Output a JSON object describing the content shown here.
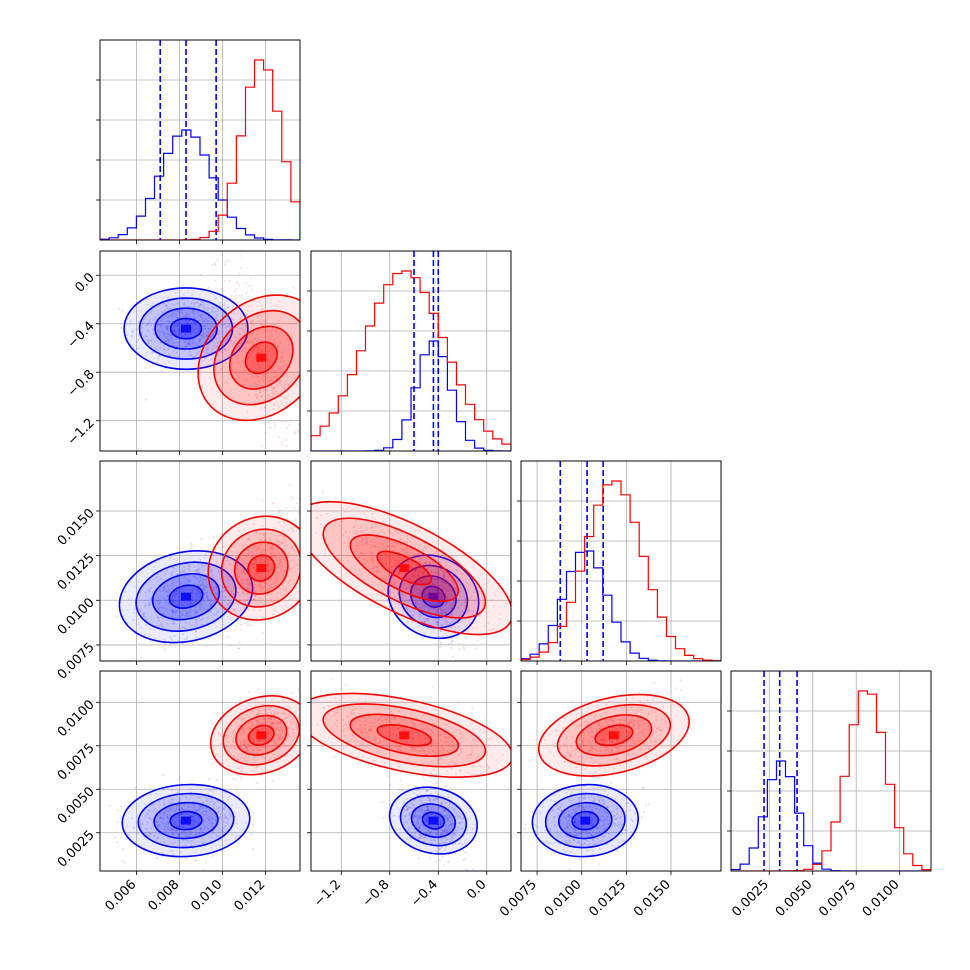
{
  "chart_data": {
    "type": "corner",
    "title": "",
    "parameters": [
      "",
      "",
      "",
      ""
    ],
    "colors": {
      "series_a": "#0000ff",
      "series_b": "#ff0000"
    },
    "grid": true,
    "legend": "none",
    "ranges": [
      [
        0.0043,
        0.0136
      ],
      [
        -1.45,
        0.2
      ],
      [
        0.0066,
        0.0178
      ],
      [
        0.0003,
        0.0118
      ]
    ],
    "ticks": [
      {
        "values": [
          0.006,
          0.008,
          0.01,
          0.012
        ],
        "labels": [
          "0.006",
          "0.008",
          "0.010",
          "0.012"
        ]
      },
      {
        "values": [
          -1.2,
          -0.8,
          -0.4,
          0.0
        ],
        "labels": [
          "−1.2",
          "−0.8",
          "−0.4",
          "0.0"
        ]
      },
      {
        "values": [
          0.0075,
          0.01,
          0.0125,
          0.015
        ],
        "labels": [
          "0.0075",
          "0.0100",
          "0.0125",
          "0.0150"
        ]
      },
      {
        "values": [
          0.0025,
          0.005,
          0.0075,
          0.01
        ],
        "labels": [
          "0.0025",
          "0.0050",
          "0.0075",
          "0.0100"
        ]
      }
    ],
    "series": [
      {
        "name": "",
        "color": "#0000ff",
        "means": [
          0.0083,
          -0.44,
          0.0102,
          0.0032
        ],
        "sds": [
          0.0012,
          0.14,
          0.0012,
          0.0009
        ],
        "correlation": [
          [
            1,
            0,
            0.3,
            0.1
          ],
          [
            0,
            1,
            -0.5,
            -0.3
          ],
          [
            0.3,
            -0.5,
            1,
            0.1
          ],
          [
            0.1,
            -0.3,
            0.1,
            1
          ]
        ],
        "quantiles": [
          [
            0.0071,
            0.0083,
            0.0097
          ],
          [
            -0.6,
            -0.44,
            -0.4
          ],
          [
            0.0088,
            0.0103,
            0.0112
          ],
          [
            0.0022,
            0.0031,
            0.0041
          ]
        ]
      },
      {
        "name": "",
        "color": "#ff0000",
        "means": [
          0.0118,
          -0.68,
          0.0118,
          0.0081
        ],
        "sds": [
          0.0009,
          0.33,
          0.0016,
          0.0011
        ],
        "correlation": [
          [
            1,
            -0.6,
            0.6,
            0.4
          ],
          [
            -0.6,
            1,
            -0.8,
            -0.5
          ],
          [
            0.6,
            -0.8,
            1,
            0.4
          ],
          [
            0.4,
            -0.5,
            0.4,
            1
          ]
        ],
        "quantiles": null
      }
    ]
  }
}
